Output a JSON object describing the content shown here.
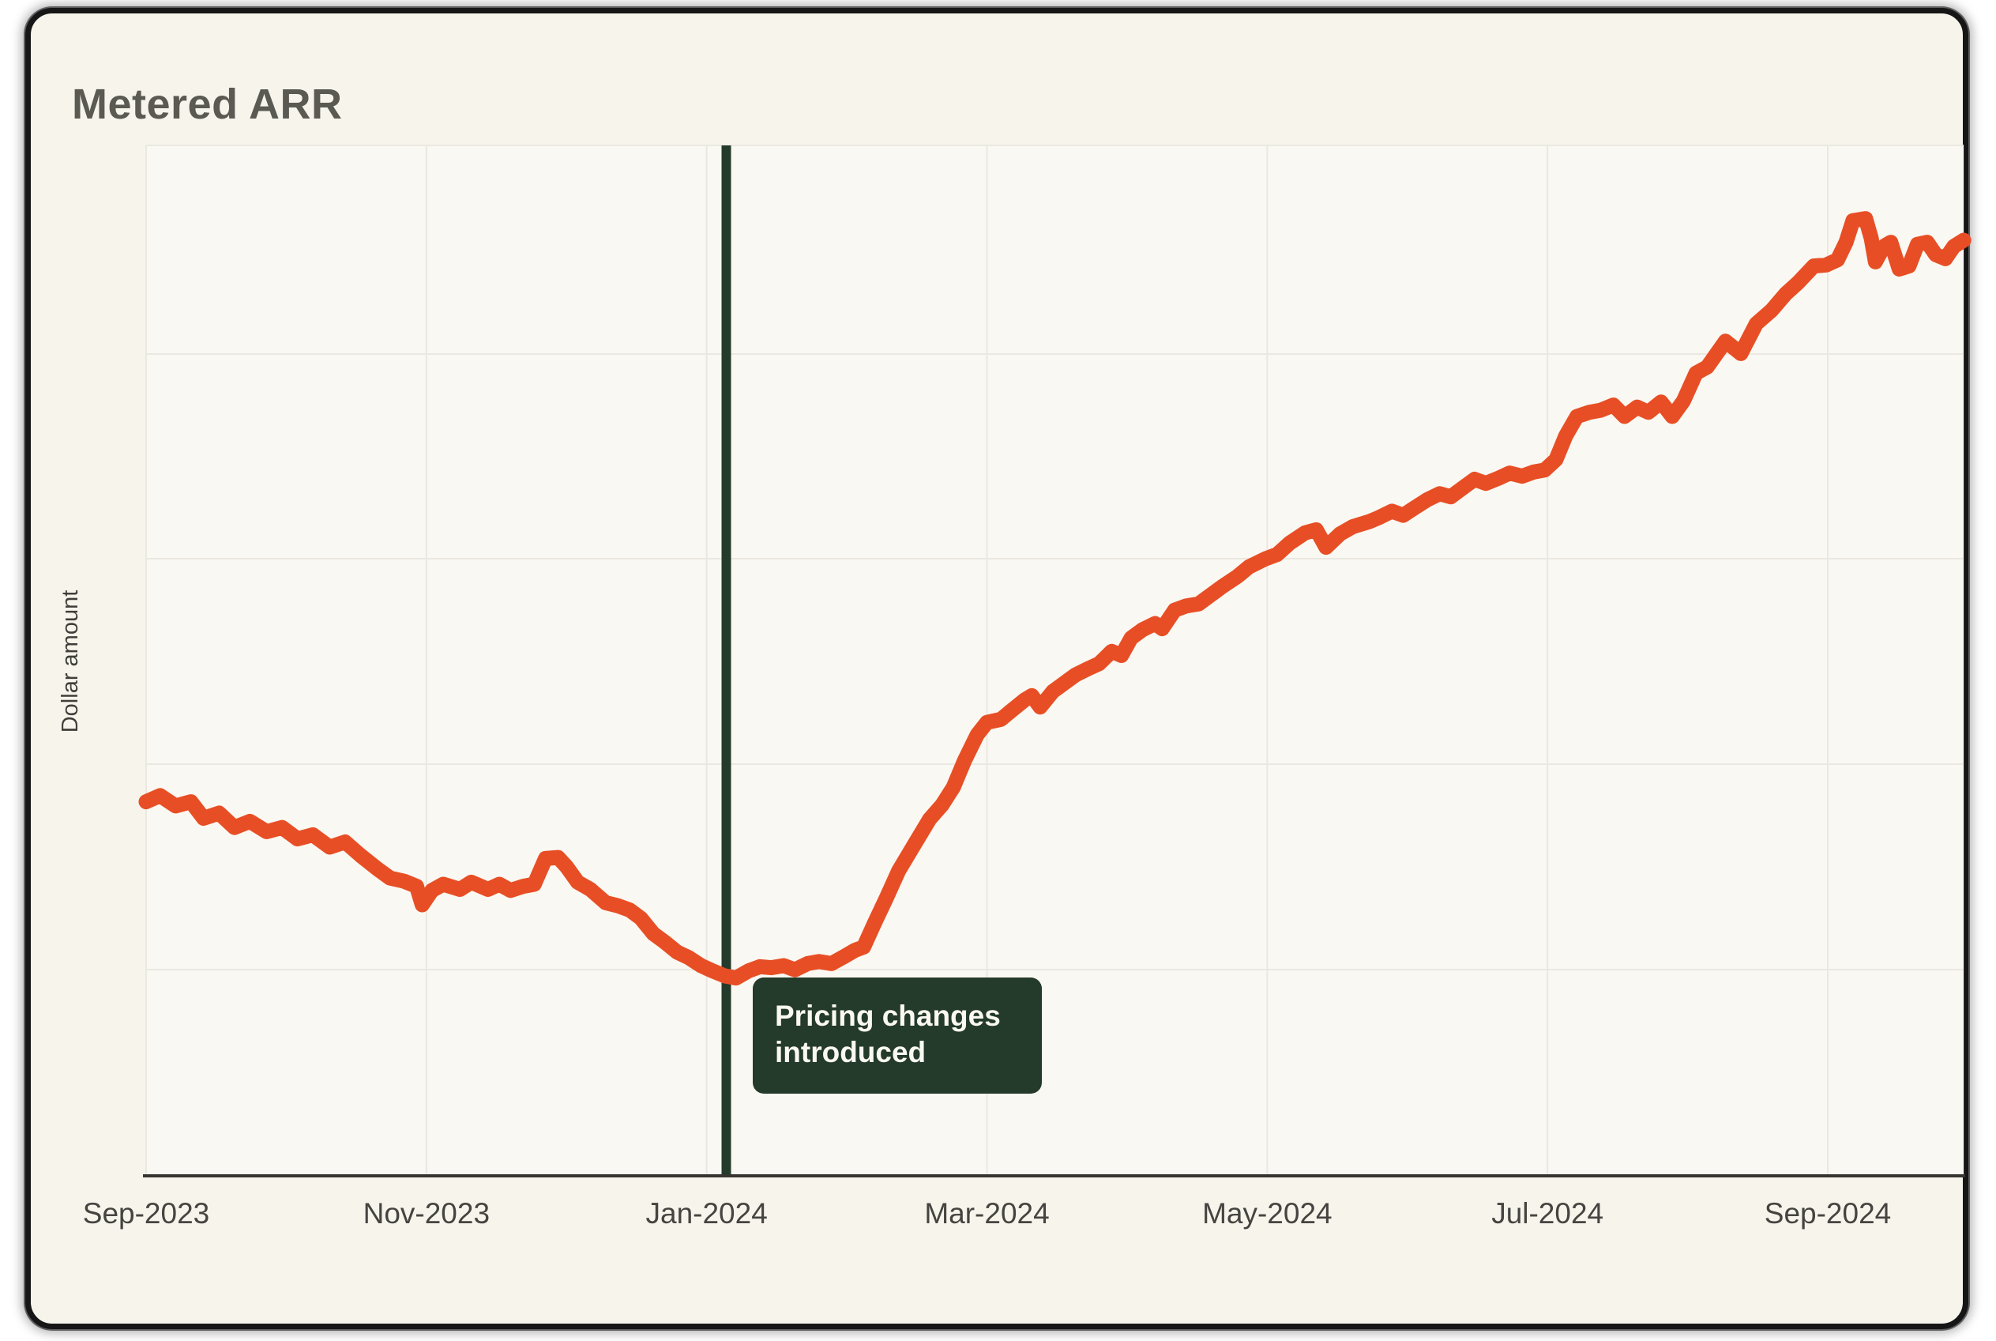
{
  "colors": {
    "accent_orange": "#E84E25",
    "marker_green": "#243A2B",
    "card_background": "#F7F4EC",
    "plot_background": "#FAF8F2",
    "gridline": "#EAE8E0",
    "axis_line": "#35342F",
    "title_text": "#5B5A52",
    "tick_text": "#454440"
  },
  "chart_data": {
    "type": "line",
    "title": "Metered ARR",
    "xlabel": "",
    "ylabel": "Dollar amount",
    "grid": true,
    "legend": false,
    "x_unit_months_since": "Sep-2023",
    "x_range_months": [
      0,
      12.97
    ],
    "ylim": [
      0,
      100
    ],
    "y_tick_labels_shown": false,
    "x_ticks": [
      {
        "m": 0,
        "label": "Sep-2023"
      },
      {
        "m": 2,
        "label": "Nov-2023"
      },
      {
        "m": 4,
        "label": "Jan-2024"
      },
      {
        "m": 6,
        "label": "Mar-2024"
      },
      {
        "m": 8,
        "label": "May-2024"
      },
      {
        "m": 10,
        "label": "Jul-2024"
      },
      {
        "m": 12,
        "label": "Sep-2024"
      }
    ],
    "annotation": {
      "label": "Pricing changes introduced",
      "x_month": 4.14,
      "marker": "vertical-line"
    },
    "series": [
      {
        "name": "Metered ARR",
        "color": "#E84E25",
        "points": [
          [
            0.0,
            36.3
          ],
          [
            0.1,
            36.9
          ],
          [
            0.21,
            35.9
          ],
          [
            0.32,
            36.3
          ],
          [
            0.41,
            34.7
          ],
          [
            0.52,
            35.2
          ],
          [
            0.63,
            33.8
          ],
          [
            0.74,
            34.4
          ],
          [
            0.86,
            33.4
          ],
          [
            0.97,
            33.8
          ],
          [
            1.08,
            32.7
          ],
          [
            1.19,
            33.1
          ],
          [
            1.31,
            31.9
          ],
          [
            1.42,
            32.4
          ],
          [
            1.53,
            31.1
          ],
          [
            1.65,
            29.8
          ],
          [
            1.74,
            28.9
          ],
          [
            1.84,
            28.6
          ],
          [
            1.93,
            28.1
          ],
          [
            1.97,
            26.3
          ],
          [
            2.04,
            27.7
          ],
          [
            2.12,
            28.3
          ],
          [
            2.24,
            27.8
          ],
          [
            2.32,
            28.5
          ],
          [
            2.44,
            27.8
          ],
          [
            2.52,
            28.3
          ],
          [
            2.6,
            27.7
          ],
          [
            2.69,
            28.1
          ],
          [
            2.77,
            28.3
          ],
          [
            2.85,
            30.8
          ],
          [
            2.94,
            30.9
          ],
          [
            3.0,
            30.0
          ],
          [
            3.08,
            28.5
          ],
          [
            3.17,
            27.8
          ],
          [
            3.28,
            26.5
          ],
          [
            3.37,
            26.2
          ],
          [
            3.45,
            25.8
          ],
          [
            3.53,
            25.0
          ],
          [
            3.62,
            23.5
          ],
          [
            3.7,
            22.7
          ],
          [
            3.79,
            21.7
          ],
          [
            3.87,
            21.2
          ],
          [
            3.96,
            20.4
          ],
          [
            4.04,
            19.9
          ],
          [
            4.13,
            19.4
          ],
          [
            4.21,
            19.2
          ],
          [
            4.3,
            19.9
          ],
          [
            4.38,
            20.3
          ],
          [
            4.46,
            20.2
          ],
          [
            4.55,
            20.4
          ],
          [
            4.63,
            20.0
          ],
          [
            4.72,
            20.6
          ],
          [
            4.8,
            20.8
          ],
          [
            4.89,
            20.6
          ],
          [
            4.97,
            21.2
          ],
          [
            5.06,
            21.9
          ],
          [
            5.12,
            22.2
          ],
          [
            5.2,
            24.6
          ],
          [
            5.28,
            26.9
          ],
          [
            5.37,
            29.6
          ],
          [
            5.48,
            32.1
          ],
          [
            5.59,
            34.6
          ],
          [
            5.68,
            36.0
          ],
          [
            5.76,
            37.7
          ],
          [
            5.84,
            40.3
          ],
          [
            5.93,
            42.8
          ],
          [
            6.0,
            44.0
          ],
          [
            6.1,
            44.3
          ],
          [
            6.18,
            45.2
          ],
          [
            6.27,
            46.2
          ],
          [
            6.32,
            46.6
          ],
          [
            6.38,
            45.5
          ],
          [
            6.47,
            47.0
          ],
          [
            6.55,
            47.8
          ],
          [
            6.63,
            48.6
          ],
          [
            6.72,
            49.2
          ],
          [
            6.8,
            49.7
          ],
          [
            6.89,
            50.9
          ],
          [
            6.96,
            50.5
          ],
          [
            7.03,
            52.2
          ],
          [
            7.11,
            53.0
          ],
          [
            7.2,
            53.6
          ],
          [
            7.25,
            53.1
          ],
          [
            7.34,
            54.9
          ],
          [
            7.42,
            55.3
          ],
          [
            7.51,
            55.5
          ],
          [
            7.68,
            57.2
          ],
          [
            7.79,
            58.2
          ],
          [
            7.87,
            59.1
          ],
          [
            7.99,
            59.9
          ],
          [
            8.07,
            60.3
          ],
          [
            8.16,
            61.4
          ],
          [
            8.27,
            62.4
          ],
          [
            8.35,
            62.7
          ],
          [
            8.42,
            61.0
          ],
          [
            8.52,
            62.3
          ],
          [
            8.61,
            63.0
          ],
          [
            8.73,
            63.5
          ],
          [
            8.8,
            63.9
          ],
          [
            8.89,
            64.5
          ],
          [
            8.97,
            64.1
          ],
          [
            9.06,
            64.9
          ],
          [
            9.14,
            65.6
          ],
          [
            9.23,
            66.2
          ],
          [
            9.31,
            65.9
          ],
          [
            9.4,
            66.8
          ],
          [
            9.48,
            67.6
          ],
          [
            9.56,
            67.2
          ],
          [
            9.65,
            67.7
          ],
          [
            9.73,
            68.2
          ],
          [
            9.82,
            67.9
          ],
          [
            9.9,
            68.3
          ],
          [
            9.98,
            68.5
          ],
          [
            10.06,
            69.5
          ],
          [
            10.13,
            71.8
          ],
          [
            10.21,
            73.7
          ],
          [
            10.3,
            74.1
          ],
          [
            10.38,
            74.3
          ],
          [
            10.47,
            74.8
          ],
          [
            10.55,
            73.7
          ],
          [
            10.64,
            74.6
          ],
          [
            10.72,
            74.1
          ],
          [
            10.81,
            75.1
          ],
          [
            10.89,
            73.7
          ],
          [
            10.97,
            75.2
          ],
          [
            11.06,
            77.9
          ],
          [
            11.14,
            78.5
          ],
          [
            11.27,
            81.0
          ],
          [
            11.38,
            79.8
          ],
          [
            11.49,
            82.7
          ],
          [
            11.6,
            84.0
          ],
          [
            11.7,
            85.6
          ],
          [
            11.79,
            86.7
          ],
          [
            11.9,
            88.3
          ],
          [
            11.99,
            88.4
          ],
          [
            12.07,
            88.9
          ],
          [
            12.13,
            90.6
          ],
          [
            12.18,
            92.7
          ],
          [
            12.27,
            92.9
          ],
          [
            12.31,
            91.0
          ],
          [
            12.34,
            88.7
          ],
          [
            12.4,
            90.2
          ],
          [
            12.45,
            90.6
          ],
          [
            12.51,
            88.0
          ],
          [
            12.58,
            88.3
          ],
          [
            12.64,
            90.4
          ],
          [
            12.71,
            90.6
          ],
          [
            12.77,
            89.4
          ],
          [
            12.84,
            89.0
          ],
          [
            12.9,
            90.2
          ],
          [
            12.97,
            90.8
          ]
        ]
      }
    ]
  }
}
